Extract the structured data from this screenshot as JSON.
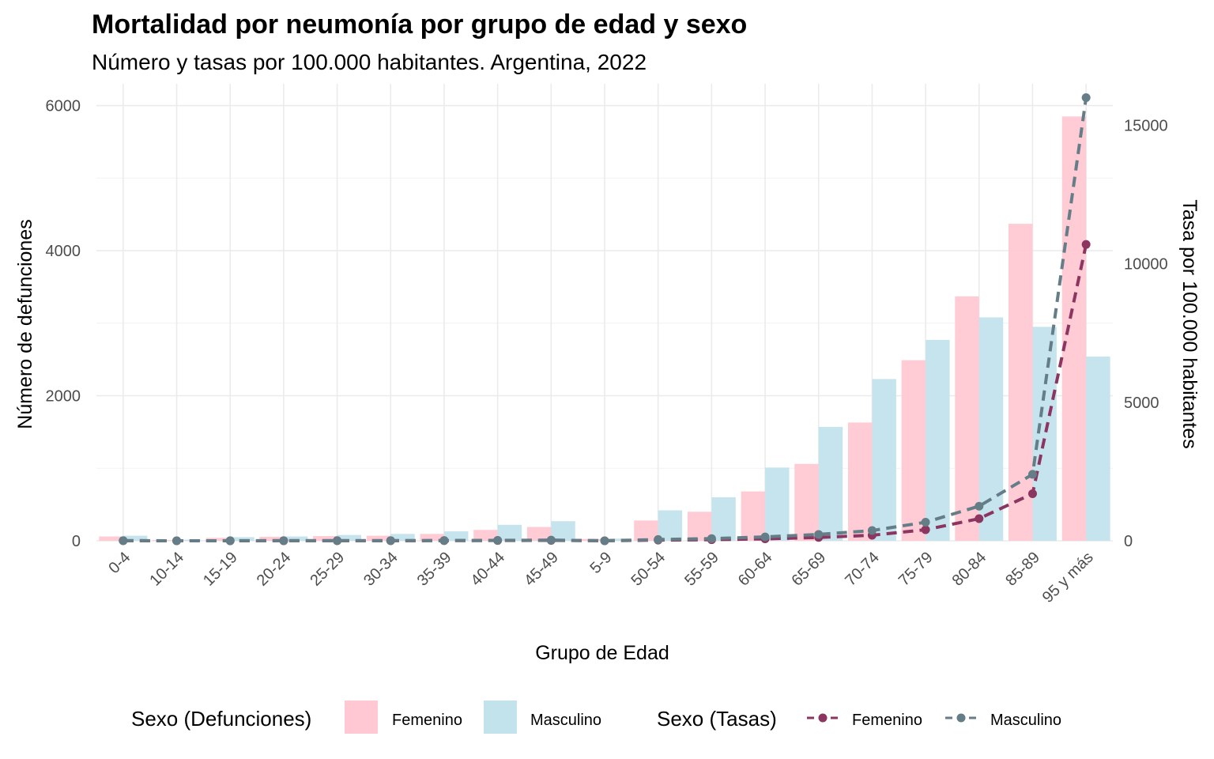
{
  "chart_data": {
    "type": "bar",
    "title": "Mortalidad por neumonía por grupo de edad y sexo",
    "subtitle": "Número y tasas por 100.000 habitantes. Argentina, 2022",
    "xlabel": "Grupo de Edad",
    "ylabel": "Número de defunciones",
    "y2label": "Tasa por 100.000 habitantes",
    "ylim": [
      0,
      6300
    ],
    "y2lim": [
      0,
      16500
    ],
    "yticks": [
      "0",
      "2000",
      "4000",
      "6000"
    ],
    "y2ticks": [
      "0",
      "5000",
      "10000",
      "15000"
    ],
    "categories": [
      "0-4",
      "10-14",
      "15-19",
      "20-24",
      "25-29",
      "30-34",
      "35-39",
      "40-44",
      "45-49",
      "5-9",
      "50-54",
      "55-59",
      "60-64",
      "65-69",
      "70-74",
      "75-79",
      "80-84",
      "85-89",
      "95 y más"
    ],
    "grid": true,
    "legend_position": "bottom",
    "bar_series": [
      {
        "name": "Femenino",
        "color": "#ffc8d2",
        "values": [
          60,
          10,
          40,
          55,
          65,
          70,
          95,
          150,
          190,
          25,
          280,
          400,
          680,
          1060,
          1630,
          2490,
          3370,
          4370,
          5850
        ]
      },
      {
        "name": "Masculino",
        "color": "#c3e3ec",
        "values": [
          70,
          15,
          50,
          60,
          80,
          95,
          130,
          220,
          270,
          30,
          420,
          600,
          1010,
          1570,
          2230,
          2770,
          3080,
          2950,
          2540
        ]
      }
    ],
    "rate_series": [
      {
        "name": "Femenino",
        "color": "#8b3560",
        "values": [
          3,
          0.5,
          1.5,
          2,
          3,
          4,
          6,
          10,
          15,
          1,
          25,
          40,
          70,
          120,
          200,
          400,
          800,
          1700,
          10700
        ]
      },
      {
        "name": "Masculino",
        "color": "#647d87",
        "values": [
          4,
          0.5,
          2,
          3,
          4,
          5,
          8,
          15,
          25,
          1,
          45,
          80,
          140,
          230,
          370,
          670,
          1250,
          2400,
          16000
        ]
      }
    ],
    "legend": {
      "bars_title": "Sexo (Defunciones)",
      "lines_title": "Sexo (Tasas)",
      "bar_labels": [
        "Femenino",
        "Masculino"
      ],
      "line_labels": [
        "Femenino",
        "Masculino"
      ]
    }
  }
}
